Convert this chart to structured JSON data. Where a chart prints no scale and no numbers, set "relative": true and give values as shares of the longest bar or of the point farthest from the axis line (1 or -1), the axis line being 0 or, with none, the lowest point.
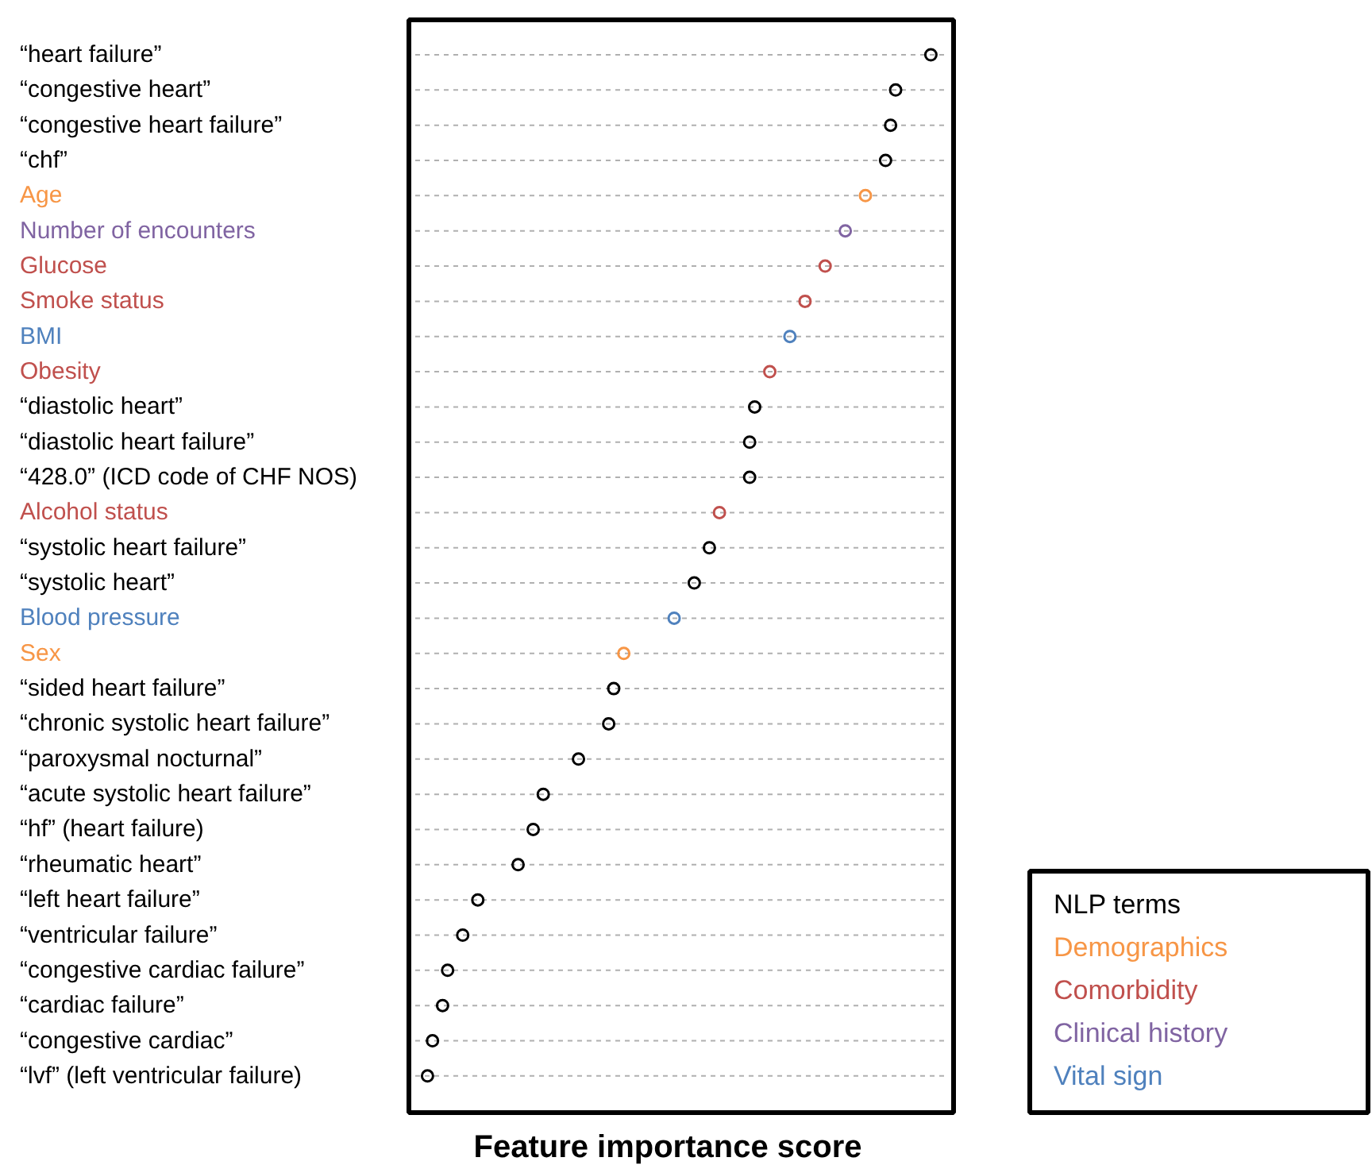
{
  "chart_data": {
    "type": "scatter",
    "relative": true,
    "orientation": "horizontal",
    "xlabel": "Feature importance score",
    "marker": "circle",
    "grid": "y",
    "legend": "bottom right",
    "categories": [
      "“heart failure”",
      "“congestive heart”",
      "“congestive heart failure”",
      "“chf”",
      "Age",
      "Number of encounters",
      "Glucose",
      "Smoke status",
      "BMI",
      "Obesity",
      "“diastolic heart”",
      "“diastolic heart failure”",
      "“428.0” (ICD code of CHF NOS)",
      "Alcohol status",
      "“systolic heart failure”",
      "“systolic heart”",
      "Blood pressure",
      "Sex",
      "“sided heart failure”",
      "“chronic systolic heart failure”",
      "“paroxysmal nocturnal”",
      "“acute systolic heart failure”",
      "“hf” (heart failure)",
      "“rheumatic heart”",
      "“left heart failure”",
      "“ventricular failure”",
      "“congestive cardiac failure”",
      "“cardiac failure”",
      "“congestive cardiac”",
      "“lvf” (left ventricular failure)"
    ],
    "series": [
      {
        "name": "NLP terms",
        "color": "#000000",
        "values": [
          1,
          0.93,
          0.92,
          0.91,
          null,
          null,
          null,
          null,
          null,
          null,
          0.65,
          0.64,
          0.64,
          null,
          0.56,
          0.53,
          null,
          null,
          0.37,
          0.36,
          0.3,
          0.23,
          0.21,
          0.18,
          0.1,
          0.07,
          0.04,
          0.03,
          0.01,
          0
        ]
      },
      {
        "name": "Demographics",
        "color": "#f79646",
        "values": [
          null,
          null,
          null,
          null,
          0.87,
          null,
          null,
          null,
          null,
          null,
          null,
          null,
          null,
          null,
          null,
          null,
          null,
          0.39,
          null,
          null,
          null,
          null,
          null,
          null,
          null,
          null,
          null,
          null,
          null,
          null
        ]
      },
      {
        "name": "Comorbidity",
        "color": "#c0504d",
        "values": [
          null,
          null,
          null,
          null,
          null,
          null,
          0.79,
          0.75,
          null,
          0.68,
          null,
          null,
          null,
          0.58,
          null,
          null,
          null,
          null,
          null,
          null,
          null,
          null,
          null,
          null,
          null,
          null,
          null,
          null,
          null,
          null
        ]
      },
      {
        "name": "Clinical history",
        "color": "#8064a2",
        "values": [
          null,
          null,
          null,
          null,
          null,
          0.83,
          null,
          null,
          null,
          null,
          null,
          null,
          null,
          null,
          null,
          null,
          null,
          null,
          null,
          null,
          null,
          null,
          null,
          null,
          null,
          null,
          null,
          null,
          null,
          null
        ]
      },
      {
        "name": "Vital sign",
        "color": "#4f81bd",
        "values": [
          null,
          null,
          null,
          null,
          null,
          null,
          null,
          null,
          0.72,
          null,
          null,
          null,
          null,
          null,
          null,
          null,
          0.49,
          null,
          null,
          null,
          null,
          null,
          null,
          null,
          null,
          null,
          null,
          null,
          null,
          null
        ]
      }
    ]
  }
}
